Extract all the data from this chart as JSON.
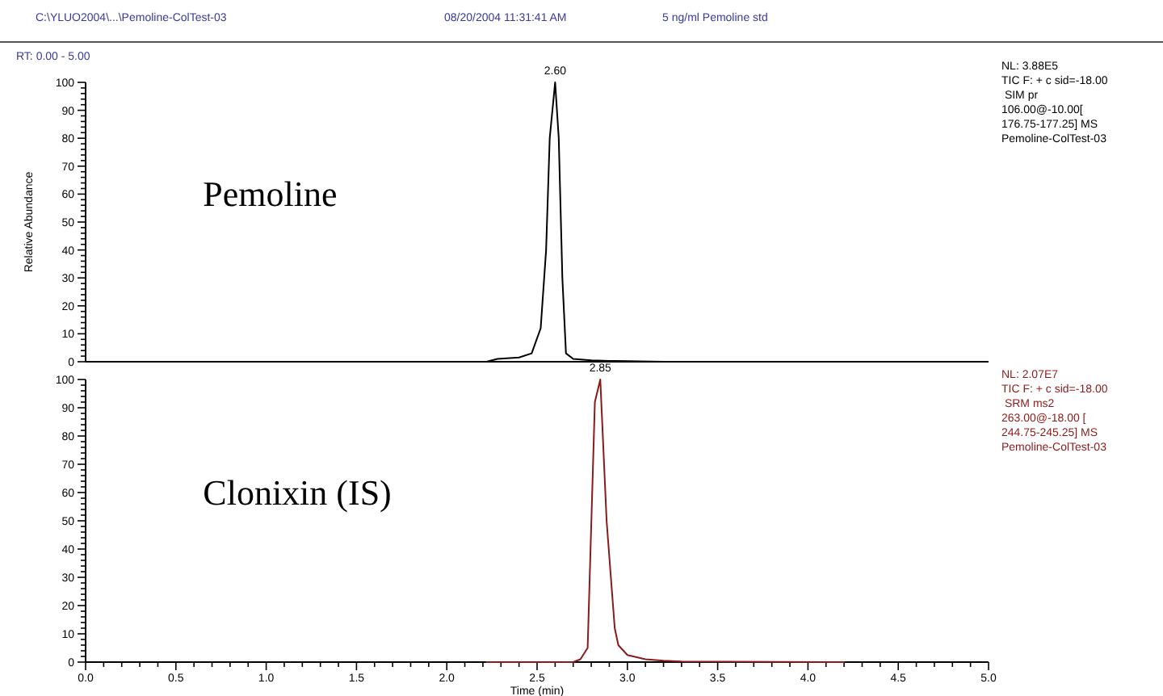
{
  "chart_data": [
    {
      "type": "line",
      "title": "Pemoline",
      "ylabel": "Relative Abundance",
      "tick_labels": "y",
      "grid": false,
      "annotations": [
        "C:\\YLUO2004\\...\\Pemoline-ColTest-03",
        "08/20/2004 11:31:41 AM",
        "5 ng/ml Pemoline std",
        "RT: 0.00 - 5.00",
        {
          "text": "2.60",
          "x": 2.6,
          "y": 100
        },
        "NL: 3.88E5",
        "TIC F: + c sid=-18.00",
        " SIM pr",
        "106.00@-10.00[",
        "176.75-177.25] MS",
        "Pemoline-ColTest-03"
      ],
      "xlim": [
        0,
        5
      ],
      "ylim": [
        0,
        100
      ],
      "yticks": [
        0,
        {
          "value": 2,
          "label": null
        },
        {
          "value": 4,
          "label": null
        },
        {
          "value": 6,
          "label": null
        },
        {
          "value": 8,
          "label": null
        },
        10,
        {
          "value": 12,
          "label": null
        },
        {
          "value": 14,
          "label": null
        },
        {
          "value": 16,
          "label": null
        },
        {
          "value": 18,
          "label": null
        },
        20,
        {
          "value": 22,
          "label": null
        },
        {
          "value": 24,
          "label": null
        },
        {
          "value": 26,
          "label": null
        },
        {
          "value": 28,
          "label": null
        },
        30,
        {
          "value": 32,
          "label": null
        },
        {
          "value": 34,
          "label": null
        },
        {
          "value": 36,
          "label": null
        },
        {
          "value": 38,
          "label": null
        },
        40,
        {
          "value": 42,
          "label": null
        },
        {
          "value": 44,
          "label": null
        },
        {
          "value": 46,
          "label": null
        },
        {
          "value": 48,
          "label": null
        },
        50,
        {
          "value": 52,
          "label": null
        },
        {
          "value": 54,
          "label": null
        },
        {
          "value": 56,
          "label": null
        },
        {
          "value": 58,
          "label": null
        },
        60,
        {
          "value": 62,
          "label": null
        },
        {
          "value": 64,
          "label": null
        },
        {
          "value": 66,
          "label": null
        },
        {
          "value": 68,
          "label": null
        },
        70,
        {
          "value": 72,
          "label": null
        },
        {
          "value": 74,
          "label": null
        },
        {
          "value": 76,
          "label": null
        },
        {
          "value": 78,
          "label": null
        },
        80,
        {
          "value": 82,
          "label": null
        },
        {
          "value": 84,
          "label": null
        },
        {
          "value": 86,
          "label": null
        },
        {
          "value": 88,
          "label": null
        },
        90,
        {
          "value": 92,
          "label": null
        },
        {
          "value": 94,
          "label": null
        },
        {
          "value": 96,
          "label": null
        },
        {
          "value": 98,
          "label": null
        },
        100
      ],
      "series": [
        {
          "color": "#000000",
          "x": [
            2.22,
            2.28,
            2.4,
            2.47,
            2.52,
            2.55,
            2.57,
            2.6,
            2.62,
            2.64,
            2.66,
            2.7,
            2.8,
            2.9,
            3.0,
            3.2,
            4.2
          ],
          "values": [
            0,
            1,
            1.5,
            3,
            12,
            40,
            80,
            100,
            80,
            30,
            3,
            1,
            0.5,
            0.3,
            0.2,
            0,
            0
          ]
        }
      ]
    },
    {
      "type": "line",
      "title": "Clonixin (IS)",
      "xlabel": "Time (min)",
      "grid": false,
      "annotations": [
        {
          "text": "2.85",
          "x": 2.85,
          "y": 100
        },
        "NL: 2.07E7",
        "TIC F: + c sid=-18.00",
        " SRM ms2",
        "263.00@-18.00 [",
        "244.75-245.25] MS",
        "Pemoline-ColTest-03"
      ],
      "xlim": [
        0,
        5
      ],
      "ylim": [
        0,
        100
      ],
      "xticks": [
        {
          "value": 0,
          "label": "0.0"
        },
        {
          "value": 0.1,
          "label": null
        },
        {
          "value": 0.2,
          "label": null
        },
        {
          "value": 0.3,
          "label": null
        },
        {
          "value": 0.4,
          "label": null
        },
        {
          "value": 0.5,
          "label": "0.5"
        },
        {
          "value": 0.6,
          "label": null
        },
        {
          "value": 0.7,
          "label": null
        },
        {
          "value": 0.8,
          "label": null
        },
        {
          "value": 0.9,
          "label": null
        },
        {
          "value": 1,
          "label": "1.0"
        },
        {
          "value": 1.1,
          "label": null
        },
        {
          "value": 1.2,
          "label": null
        },
        {
          "value": 1.3,
          "label": null
        },
        {
          "value": 1.4,
          "label": null
        },
        {
          "value": 1.5,
          "label": "1.5"
        },
        {
          "value": 1.6,
          "label": null
        },
        {
          "value": 1.7,
          "label": null
        },
        {
          "value": 1.8,
          "label": null
        },
        {
          "value": 1.9,
          "label": null
        },
        {
          "value": 2,
          "label": "2.0"
        },
        {
          "value": 2.1,
          "label": null
        },
        {
          "value": 2.2,
          "label": null
        },
        {
          "value": 2.3,
          "label": null
        },
        {
          "value": 2.4,
          "label": null
        },
        {
          "value": 2.5,
          "label": "2.5"
        },
        {
          "value": 2.6,
          "label": null
        },
        {
          "value": 2.7,
          "label": null
        },
        {
          "value": 2.8,
          "label": null
        },
        {
          "value": 2.9,
          "label": null
        },
        {
          "value": 3,
          "label": "3.0"
        },
        {
          "value": 3.1,
          "label": null
        },
        {
          "value": 3.2,
          "label": null
        },
        {
          "value": 3.3,
          "label": null
        },
        {
          "value": 3.4,
          "label": null
        },
        {
          "value": 3.5,
          "label": "3.5"
        },
        {
          "value": 3.6,
          "label": null
        },
        {
          "value": 3.7,
          "label": null
        },
        {
          "value": 3.8,
          "label": null
        },
        {
          "value": 3.9,
          "label": null
        },
        {
          "value": 4,
          "label": "4.0"
        },
        {
          "value": 4.1,
          "label": null
        },
        {
          "value": 4.2,
          "label": null
        },
        {
          "value": 4.3,
          "label": null
        },
        {
          "value": 4.4,
          "label": null
        },
        {
          "value": 4.5,
          "label": "4.5"
        },
        {
          "value": 4.6,
          "label": null
        },
        {
          "value": 4.7,
          "label": null
        },
        {
          "value": 4.8,
          "label": null
        },
        {
          "value": 4.9,
          "label": null
        },
        {
          "value": 5,
          "label": "5.0"
        }
      ],
      "yticks": [
        0,
        {
          "value": 2,
          "label": null
        },
        {
          "value": 4,
          "label": null
        },
        {
          "value": 6,
          "label": null
        },
        {
          "value": 8,
          "label": null
        },
        10,
        {
          "value": 12,
          "label": null
        },
        {
          "value": 14,
          "label": null
        },
        {
          "value": 16,
          "label": null
        },
        {
          "value": 18,
          "label": null
        },
        20,
        {
          "value": 22,
          "label": null
        },
        {
          "value": 24,
          "label": null
        },
        {
          "value": 26,
          "label": null
        },
        {
          "value": 28,
          "label": null
        },
        30,
        {
          "value": 32,
          "label": null
        },
        {
          "value": 34,
          "label": null
        },
        {
          "value": 36,
          "label": null
        },
        {
          "value": 38,
          "label": null
        },
        40,
        {
          "value": 42,
          "label": null
        },
        {
          "value": 44,
          "label": null
        },
        {
          "value": 46,
          "label": null
        },
        {
          "value": 48,
          "label": null
        },
        50,
        {
          "value": 52,
          "label": null
        },
        {
          "value": 54,
          "label": null
        },
        {
          "value": 56,
          "label": null
        },
        {
          "value": 58,
          "label": null
        },
        60,
        {
          "value": 62,
          "label": null
        },
        {
          "value": 64,
          "label": null
        },
        {
          "value": 66,
          "label": null
        },
        {
          "value": 68,
          "label": null
        },
        70,
        {
          "value": 72,
          "label": null
        },
        {
          "value": 74,
          "label": null
        },
        {
          "value": 76,
          "label": null
        },
        {
          "value": 78,
          "label": null
        },
        80,
        {
          "value": 82,
          "label": null
        },
        {
          "value": 84,
          "label": null
        },
        {
          "value": 86,
          "label": null
        },
        {
          "value": 88,
          "label": null
        },
        90,
        {
          "value": 92,
          "label": null
        },
        {
          "value": 94,
          "label": null
        },
        {
          "value": 96,
          "label": null
        },
        {
          "value": 98,
          "label": null
        },
        100
      ],
      "series": [
        {
          "color": "#8b1a1a",
          "x": [
            2.22,
            2.7,
            2.74,
            2.78,
            2.82,
            2.85,
            2.885,
            2.93,
            2.95,
            3.0,
            3.1,
            3.2,
            3.3,
            4.2
          ],
          "values": [
            0,
            0,
            1,
            5,
            92,
            100,
            50,
            12,
            6,
            2.5,
            1,
            0.5,
            0.2,
            0
          ]
        }
      ]
    }
  ]
}
